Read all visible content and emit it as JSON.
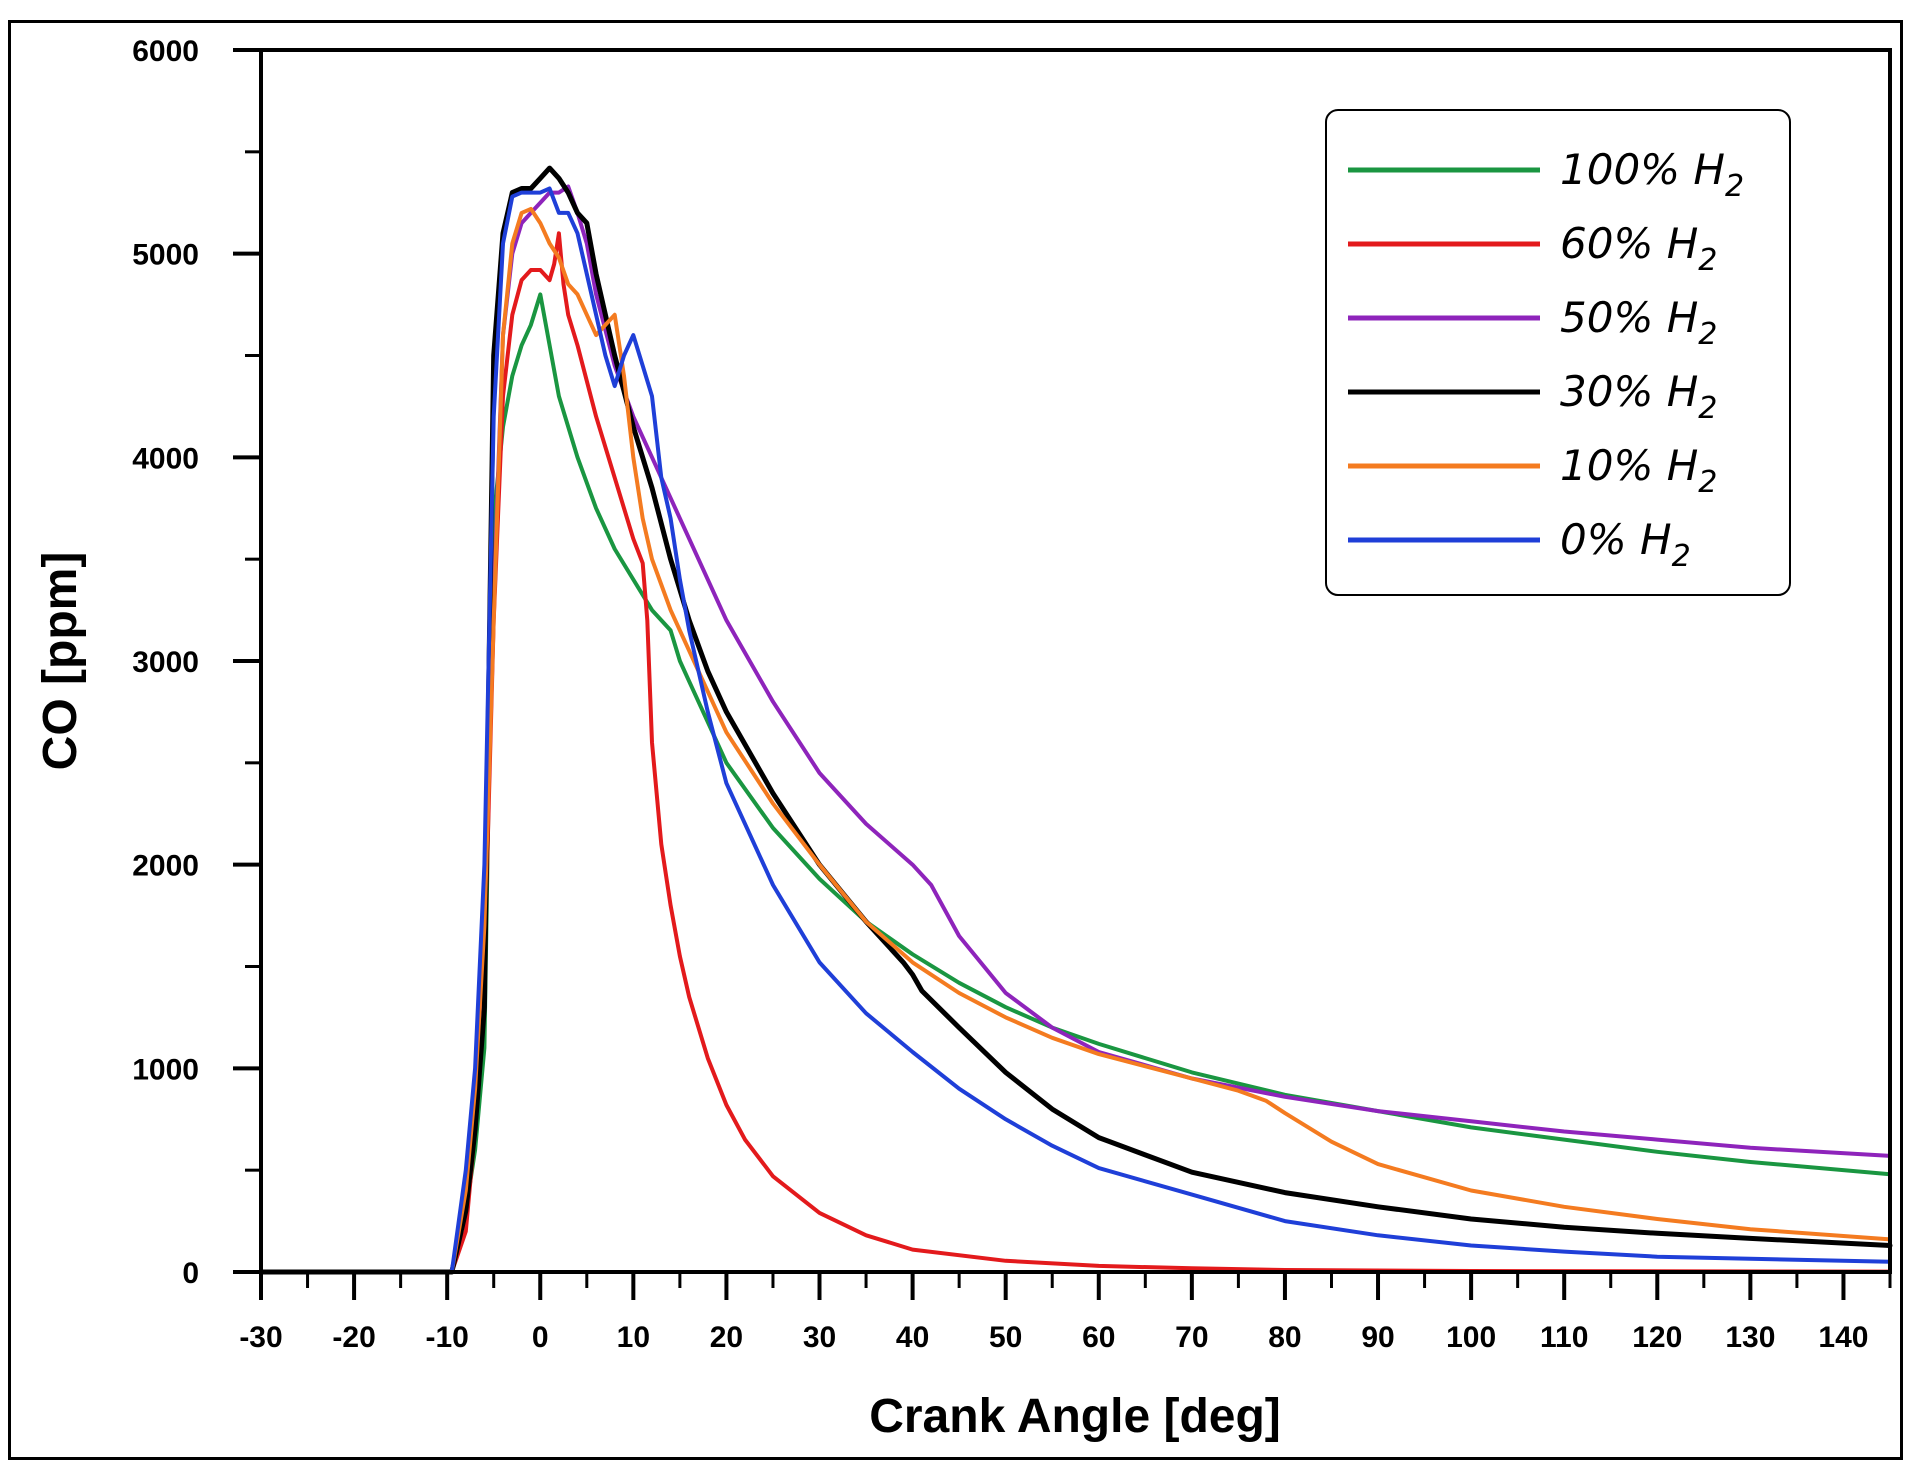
{
  "chart_data": {
    "type": "line",
    "title": "",
    "xlabel": "Crank Angle [deg]",
    "ylabel": "CO [ppm]",
    "xlim": [
      -30,
      145
    ],
    "ylim": [
      0,
      6000
    ],
    "xticks": [
      -30,
      -20,
      -10,
      0,
      10,
      20,
      30,
      40,
      50,
      60,
      70,
      80,
      90,
      100,
      110,
      120,
      130,
      140
    ],
    "yticks": [
      0,
      1000,
      2000,
      3000,
      4000,
      5000,
      6000
    ],
    "legend_position": "top-right",
    "series": [
      {
        "name": "100% H2",
        "label_main": "100% H",
        "label_sub": "2",
        "color": "#1a9641",
        "x": [
          -30,
          -9.5,
          -8,
          -7,
          -6,
          -5.5,
          -5,
          -4,
          -3,
          -2,
          -1,
          0,
          1,
          2,
          4,
          6,
          8,
          10,
          12,
          14,
          15,
          16,
          18,
          20,
          25,
          30,
          35,
          40,
          45,
          50,
          55,
          60,
          70,
          80,
          90,
          100,
          110,
          120,
          130,
          145
        ],
        "y": [
          0,
          0,
          300,
          600,
          1100,
          2500,
          3700,
          4150,
          4400,
          4550,
          4650,
          4800,
          4550,
          4300,
          4000,
          3750,
          3550,
          3400,
          3250,
          3150,
          3000,
          2900,
          2700,
          2500,
          2180,
          1930,
          1720,
          1560,
          1420,
          1300,
          1200,
          1120,
          980,
          870,
          790,
          710,
          650,
          590,
          540,
          480
        ]
      },
      {
        "name": "60% H2",
        "label_main": "60% H",
        "label_sub": "2",
        "color": "#e31a1c",
        "x": [
          -30,
          -9.5,
          -8,
          -7,
          -6,
          -5,
          -4,
          -3,
          -2,
          -1,
          0,
          1,
          1.5,
          2,
          2.5,
          3,
          4,
          6,
          8,
          10,
          11,
          11.5,
          12,
          13,
          14,
          15,
          16,
          18,
          20,
          22,
          25,
          30,
          35,
          40,
          50,
          60,
          70,
          80,
          100,
          145
        ],
        "y": [
          0,
          0,
          200,
          700,
          1500,
          3200,
          4300,
          4700,
          4870,
          4920,
          4920,
          4870,
          4950,
          5100,
          4850,
          4700,
          4550,
          4200,
          3900,
          3600,
          3480,
          3200,
          2600,
          2100,
          1800,
          1550,
          1350,
          1050,
          820,
          650,
          470,
          290,
          180,
          110,
          55,
          30,
          18,
          10,
          5,
          2
        ]
      },
      {
        "name": "50% H2",
        "label_main": "50% H",
        "label_sub": "2",
        "color": "#8e24bb",
        "x": [
          -30,
          -9.5,
          -8,
          -7,
          -6,
          -5,
          -4,
          -3,
          -2,
          -1,
          0,
          1,
          2,
          3,
          4,
          5,
          6,
          8,
          10,
          12,
          15,
          20,
          25,
          30,
          35,
          40,
          42,
          45,
          50,
          55,
          60,
          70,
          80,
          90,
          100,
          110,
          120,
          130,
          145
        ],
        "y": [
          0,
          0,
          300,
          800,
          1700,
          3300,
          4600,
          5000,
          5150,
          5200,
          5250,
          5300,
          5300,
          5330,
          5200,
          5050,
          4800,
          4450,
          4200,
          4000,
          3700,
          3200,
          2800,
          2450,
          2200,
          2000,
          1900,
          1650,
          1370,
          1200,
          1080,
          950,
          860,
          790,
          740,
          690,
          650,
          610,
          570
        ]
      },
      {
        "name": "30% H2",
        "label_main": "30% H",
        "label_sub": "2",
        "color": "#000000",
        "x": [
          -30,
          -9.5,
          -8,
          -7,
          -6,
          -5.5,
          -5,
          -4,
          -3,
          -2,
          -1,
          0,
          1,
          2,
          3,
          4,
          5,
          6,
          8,
          10,
          12,
          14,
          16,
          18,
          20,
          25,
          30,
          35,
          39,
          40,
          41,
          45,
          50,
          55,
          60,
          70,
          80,
          90,
          100,
          110,
          120,
          130,
          145
        ],
        "y": [
          0,
          0,
          300,
          700,
          1300,
          3000,
          4500,
          5100,
          5300,
          5320,
          5320,
          5370,
          5420,
          5370,
          5300,
          5200,
          5150,
          4900,
          4500,
          4150,
          3850,
          3500,
          3200,
          2950,
          2750,
          2350,
          2000,
          1720,
          1520,
          1460,
          1380,
          1200,
          980,
          800,
          660,
          490,
          390,
          320,
          260,
          220,
          190,
          165,
          130
        ]
      },
      {
        "name": "10% H2",
        "label_main": "10% H",
        "label_sub": "2",
        "color": "#f47b20",
        "x": [
          -30,
          -9.5,
          -8,
          -7,
          -6,
          -5,
          -4,
          -3,
          -2,
          -1,
          0,
          1,
          2,
          3,
          4,
          5,
          6,
          7,
          8,
          9,
          10,
          11,
          12,
          14,
          16,
          18,
          20,
          25,
          30,
          35,
          40,
          45,
          50,
          55,
          60,
          70,
          75,
          78,
          80,
          85,
          90,
          100,
          110,
          120,
          130,
          145
        ],
        "y": [
          0,
          0,
          400,
          900,
          1700,
          3200,
          4600,
          5050,
          5200,
          5220,
          5150,
          5050,
          4980,
          4850,
          4800,
          4700,
          4600,
          4650,
          4700,
          4400,
          4000,
          3700,
          3500,
          3250,
          3050,
          2850,
          2650,
          2300,
          2000,
          1720,
          1520,
          1370,
          1250,
          1150,
          1070,
          950,
          890,
          840,
          780,
          640,
          530,
          400,
          320,
          260,
          210,
          160
        ]
      },
      {
        "name": "0% H2",
        "label_main": "0% H",
        "label_sub": "2",
        "color": "#1f3fd8",
        "x": [
          -30,
          -9.5,
          -8,
          -7,
          -6,
          -5,
          -4,
          -3,
          -2,
          -1,
          0,
          1,
          2,
          3,
          4,
          5,
          6,
          7,
          8,
          9,
          10,
          11,
          12,
          13,
          14,
          15,
          16,
          18,
          20,
          25,
          30,
          35,
          40,
          45,
          50,
          55,
          60,
          70,
          80,
          90,
          100,
          110,
          120,
          145
        ],
        "y": [
          0,
          0,
          500,
          1000,
          2000,
          4200,
          5050,
          5280,
          5300,
          5300,
          5300,
          5320,
          5200,
          5200,
          5100,
          4900,
          4700,
          4500,
          4350,
          4500,
          4600,
          4450,
          4300,
          3900,
          3700,
          3400,
          3150,
          2750,
          2400,
          1900,
          1520,
          1270,
          1080,
          900,
          750,
          620,
          510,
          380,
          250,
          180,
          130,
          100,
          75,
          50
        ]
      }
    ]
  }
}
